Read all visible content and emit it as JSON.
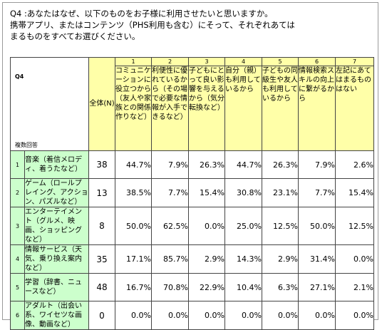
{
  "question": {
    "line1": "Q4  :あなたはなぜ、以下のものをお子様に利用させたいと思いますか。",
    "line2": "携帯アプリ、またはコンテンツ（PHS利用も含む）にそって、それぞれあては",
    "line3": "まるものをすべてお選びください。"
  },
  "chart_data": {
    "type": "table",
    "question_id": "Q4",
    "note": "複数回答",
    "total_label": "全体(N)",
    "columns": [
      {
        "num": "1",
        "label": "コミュニケーションに役立つから（友人や家族との関係作りなど）"
      },
      {
        "num": "2",
        "label": "利便性に優れているから（その場で必要な情報が入手できるなど）"
      },
      {
        "num": "3",
        "label": "子どもにとって良い影響を与えるから（気分転換など）"
      },
      {
        "num": "4",
        "label": "自分（親）も利用しているから"
      },
      {
        "num": "5",
        "label": "子どもの同級生や友人も利用しているから"
      },
      {
        "num": "6",
        "label": "情報検索スキルの向上に繋がるから"
      },
      {
        "num": "7",
        "label": "左記にあてはまるものはない"
      }
    ],
    "rows": [
      {
        "num": "1",
        "label": "音楽（着信メロディ、着うたなど）",
        "total": "38",
        "values": [
          "44.7%",
          "7.9%",
          "26.3%",
          "44.7%",
          "26.3%",
          "7.9%",
          "2.6%"
        ]
      },
      {
        "num": "2",
        "label": "ゲーム（ロールプレイング、アクション、パズルなど）",
        "total": "13",
        "values": [
          "38.5%",
          "7.7%",
          "15.4%",
          "30.8%",
          "23.1%",
          "7.7%",
          "15.4%"
        ]
      },
      {
        "num": "3",
        "label": "エンターテイメント（グルメ、映画、ショッピングなど）",
        "total": "8",
        "values": [
          "50.0%",
          "62.5%",
          "0.0%",
          "25.0%",
          "12.5%",
          "50.0%",
          "12.5%"
        ]
      },
      {
        "num": "4",
        "label": "情報サービス（天気、乗り換え案内など）",
        "total": "35",
        "values": [
          "17.1%",
          "85.7%",
          "2.9%",
          "14.3%",
          "2.9%",
          "31.4%",
          "0.0%"
        ]
      },
      {
        "num": "5",
        "label": "学習（辞書、ニュースなど）",
        "total": "48",
        "values": [
          "16.7%",
          "70.8%",
          "22.9%",
          "10.4%",
          "6.3%",
          "27.1%",
          "2.1%"
        ]
      },
      {
        "num": "6",
        "label": "アダルト（出会い系、ワイセツな画像、動画など）",
        "total": "0",
        "values": [
          "0.0%",
          "0.0%",
          "0.0%",
          "0.0%",
          "0.0%",
          "0.0%",
          "0.0%"
        ]
      }
    ]
  }
}
